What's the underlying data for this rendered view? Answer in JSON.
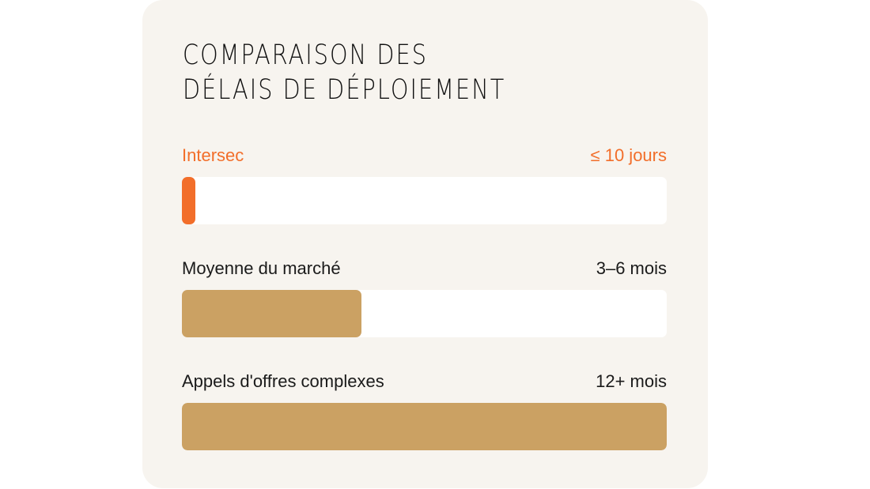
{
  "chart_data": {
    "type": "bar",
    "orientation": "horizontal",
    "title": "COMPARAISON DES DÉLAIS DE DÉPLOIEMENT",
    "title_lines": [
      "COMPARAISON DES",
      "DÉLAIS DE DÉPLOIEMENT"
    ],
    "categories": [
      "Intersec",
      "Moyenne du marché",
      "Appels d'offres complexes"
    ],
    "value_labels": [
      "≤ 10 jours",
      "3–6 mois",
      "12+ mois"
    ],
    "fill_percent": [
      2.8,
      37,
      100
    ],
    "colors": [
      "#f26e2a",
      "#cba163",
      "#cba163"
    ],
    "label_colors": [
      "#f26e2a",
      "#1a1a1a",
      "#1a1a1a"
    ],
    "track_color": "#ffffff",
    "background": "#f7f4ef"
  }
}
